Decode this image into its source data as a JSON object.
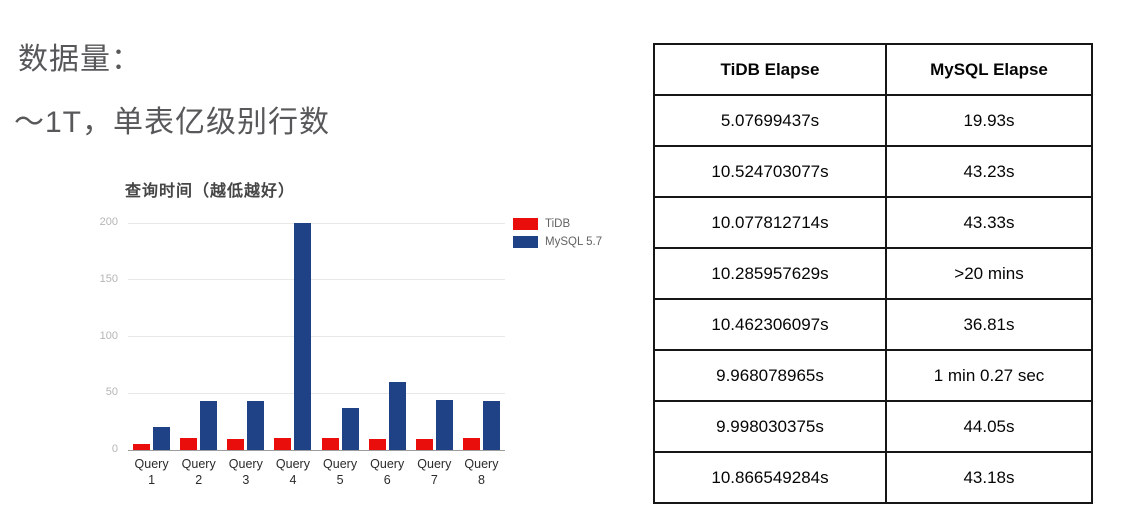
{
  "heading": {
    "line1": "数据量：",
    "line2": "～1T，单表亿级别行数"
  },
  "chart_data": {
    "type": "bar",
    "title": "查询时间（越低越好）",
    "categories": [
      "Query 1",
      "Query 2",
      "Query 3",
      "Query 4",
      "Query 5",
      "Query 6",
      "Query 7",
      "Query 8"
    ],
    "series": [
      {
        "name": "TiDB",
        "color": "#e90d0c",
        "values": [
          5.08,
          10.52,
          10.08,
          10.29,
          10.46,
          9.97,
          10.0,
          10.87
        ]
      },
      {
        "name": "MySQL 5.7",
        "color": "#1f4185",
        "values": [
          19.93,
          43.23,
          43.33,
          200,
          36.81,
          60.27,
          44.05,
          43.18
        ]
      }
    ],
    "xlabel": "",
    "ylabel": "",
    "ylim": [
      0,
      200
    ],
    "yticks": [
      0,
      50,
      100,
      150,
      200
    ],
    "grid": true,
    "legend_position": "right",
    "note": "MySQL 5.7 bar for Query 4 is clipped at the 200 axis maximum (table shows >20 mins)"
  },
  "table": {
    "headers": [
      "TiDB Elapse",
      "MySQL Elapse"
    ],
    "rows": [
      [
        "5.07699437s",
        "19.93s"
      ],
      [
        "10.524703077s",
        "43.23s"
      ],
      [
        "10.077812714s",
        "43.33s"
      ],
      [
        "10.285957629s",
        ">20 mins"
      ],
      [
        "10.462306097s",
        "36.81s"
      ],
      [
        "9.968078965s",
        "1 min 0.27 sec"
      ],
      [
        "9.998030375s",
        "44.05s"
      ],
      [
        "10.866549284s",
        "43.18s"
      ]
    ]
  }
}
